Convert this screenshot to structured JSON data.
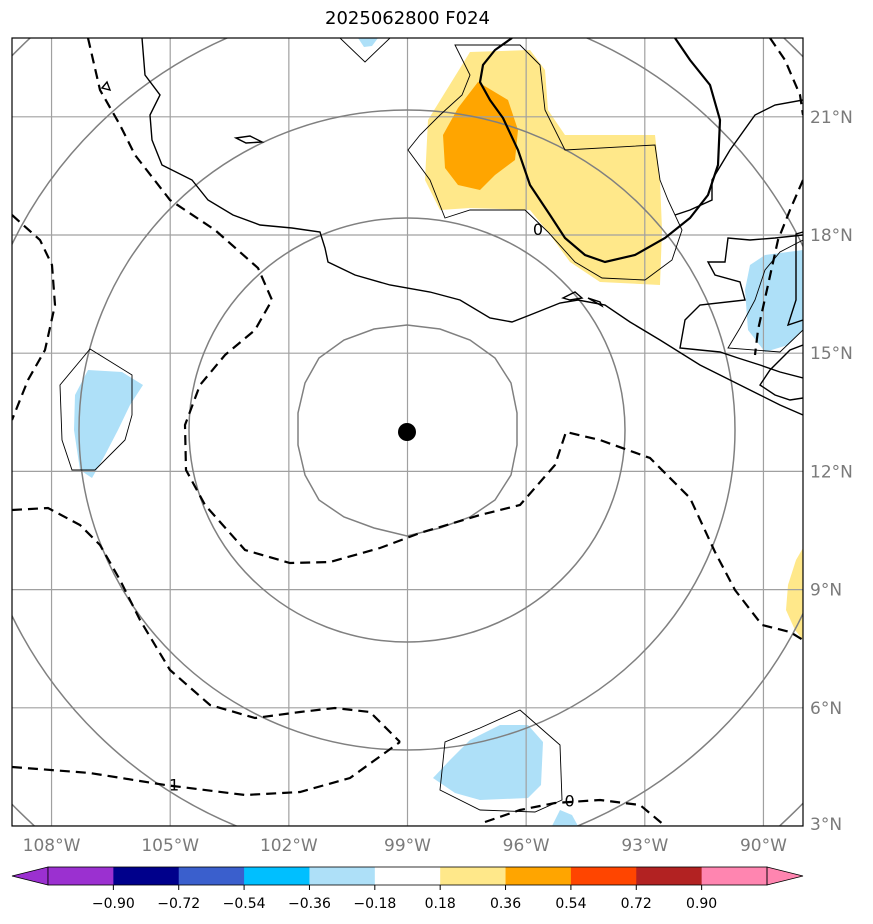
{
  "title": "2025062800 F024",
  "colors": {
    "grid": "#a0a0a0",
    "range_ring": "#808080",
    "coast": "#000000",
    "shade_light_blue": "#aee0f8",
    "shade_light_yellow": "#ffe88a",
    "shade_orange": "#ffa500"
  },
  "map": {
    "lon_range": [
      -109,
      -89
    ],
    "lat_range": [
      3,
      23
    ],
    "center_marker": {
      "lon": -99,
      "lat": 12.8
    },
    "lon_ticks": [
      {
        "value": -108,
        "label": "108°W"
      },
      {
        "value": -105,
        "label": "105°W"
      },
      {
        "value": -102,
        "label": "102°W"
      },
      {
        "value": -99,
        "label": "99°W"
      },
      {
        "value": -96,
        "label": "96°W"
      },
      {
        "value": -93,
        "label": "93°W"
      },
      {
        "value": -90,
        "label": "90°W"
      }
    ],
    "lat_ticks": [
      {
        "value": 21,
        "label": "21°N"
      },
      {
        "value": 18,
        "label": "18°N"
      },
      {
        "value": 15,
        "label": "15°N"
      },
      {
        "value": 12,
        "label": "12°N"
      },
      {
        "value": 9,
        "label": "9°N"
      },
      {
        "value": 6,
        "label": "6°N"
      },
      {
        "value": 3,
        "label": "3°N"
      }
    ],
    "contour_labels": [
      {
        "text": "0",
        "lon": -94.9,
        "lat": 3.5
      },
      {
        "text": "0",
        "lon": -95.7,
        "lat": 18.0
      },
      {
        "text": "1",
        "lon": -104.9,
        "lat": 3.9
      }
    ]
  },
  "colorbar": {
    "ticks": [
      "−0.90",
      "−0.72",
      "−0.54",
      "−0.36",
      "−0.18",
      "0.18",
      "0.36",
      "0.54",
      "0.72",
      "0.90"
    ],
    "colors": [
      "#9b30d0",
      "#00008b",
      "#3a5fcd",
      "#00bfff",
      "#aee0f8",
      "#ffffff",
      "#ffe88a",
      "#ffa500",
      "#ff4500",
      "#b22222",
      "#ff85b0",
      "#ff85b0"
    ]
  }
}
